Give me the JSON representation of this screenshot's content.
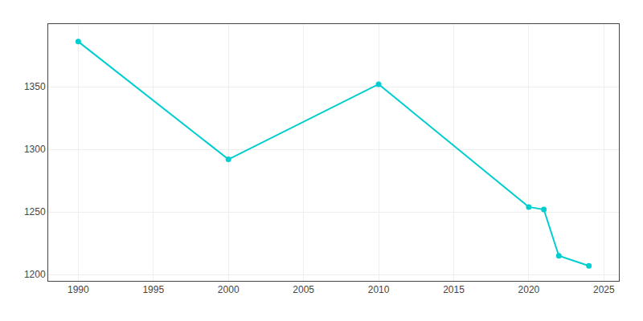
{
  "chart_data": {
    "type": "line",
    "x": [
      1990,
      2000,
      2010,
      2020,
      2021,
      2022,
      2024
    ],
    "values": [
      1386,
      1292,
      1352,
      1254,
      1252,
      1215,
      1207
    ],
    "color": "#00CED1",
    "marker": "circle",
    "xlim": [
      1988,
      2026
    ],
    "ylim": [
      1195,
      1400
    ],
    "xticks": [
      1990,
      1995,
      2000,
      2005,
      2010,
      2015,
      2020,
      2025
    ],
    "yticks": [
      1200,
      1250,
      1300,
      1350
    ],
    "grid": true
  }
}
